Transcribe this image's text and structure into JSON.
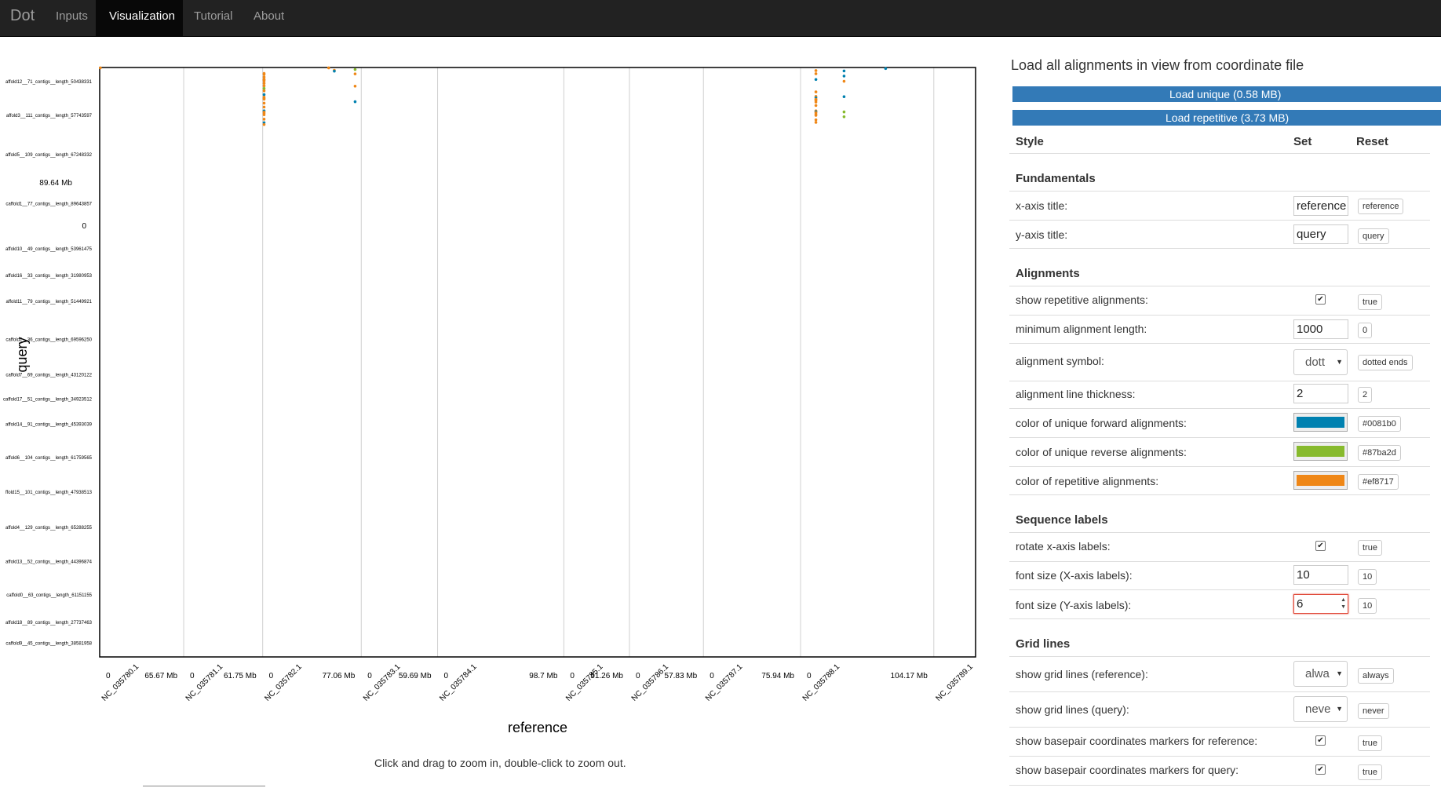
{
  "navbar": {
    "brand": "Dot",
    "links": [
      "Inputs",
      "Visualization",
      "Tutorial",
      "About"
    ],
    "active": "Visualization"
  },
  "plot": {
    "xlabel": "reference",
    "ylabel": "query",
    "hint": "Click and drag to zoom in, double-click to zoom out.",
    "y_marker_top": "89.64 Mb",
    "y_marker_bottom": "0",
    "colors": {
      "forward": "#0081b0",
      "reverse": "#87ba2d",
      "repetitive": "#ef8717"
    }
  },
  "chart_data": {
    "type": "scatter",
    "xlabel": "reference",
    "ylabel": "query",
    "x_categories": [
      "NC_035780.1",
      "NC_035781.1",
      "NC_035782.1",
      "NC_035783.1",
      "NC_035784.1",
      "NC_035785.1",
      "NC_035786.1",
      "NC_035787.1",
      "NC_035788.1",
      "NC_035789.1"
    ],
    "x_sizes_mb": [
      65.67,
      61.75,
      77.06,
      59.69,
      98.7,
      51.26,
      57.83,
      75.94,
      104.17,
      32.65
    ],
    "x_tick_labels": [
      "0",
      "65.67 Mb",
      "0",
      "61.75 Mb",
      "0",
      "77.06 Mb",
      "0",
      "59.69 Mb",
      "0",
      "98.7 Mb",
      "0",
      "51.26 Mb",
      "0",
      "57.83 Mb",
      "0",
      "75.94 Mb",
      "0",
      "104.17 Mb"
    ],
    "y_categories": [
      "affold12__71_contigs__length_50438331",
      "affold3__111_contigs__length_57743597",
      "affold5__109_contigs__length_67248332",
      "caffold1__77_contigs__length_89643857",
      "affold10__49_contigs__length_53961475",
      "affold16__33_contigs__length_31980953",
      "affold11__79_contigs__length_51449921",
      "caffold2__36_contigs__length_69596250",
      "caffold7__69_contigs__length_43120122",
      "caffold17__51_contigs__length_34923512",
      "affold14__91_contigs__length_45393039",
      "affold6__104_contigs__length_61759565",
      "ffold15__101_contigs__length_47938513",
      "affold4__129_contigs__length_65288255",
      "affold13__52_contigs__length_44396874",
      "caffold0__63_contigs__length_61151155",
      "affold18__89_contigs__length_27737463",
      "caffold9__45_contigs__length_38581958"
    ],
    "points": [
      {
        "x": 0.5,
        "y": 0.6,
        "t": "r"
      },
      {
        "x": 66.5,
        "y": 1.6,
        "t": "f"
      },
      {
        "x": 67.0,
        "y": 4.5,
        "t": "r"
      },
      {
        "x": 67.0,
        "y": 5.8,
        "t": "f"
      },
      {
        "x": 1.1,
        "y": 9.4,
        "t": "r"
      },
      {
        "x": 1.1,
        "y": 11.0,
        "t": "r"
      },
      {
        "x": 1.1,
        "y": 15.3,
        "t": "r"
      },
      {
        "x": 1.1,
        "y": 18.9,
        "t": "r"
      },
      {
        "x": 1.1,
        "y": 19.7,
        "t": "r"
      },
      {
        "x": 1.1,
        "y": 21.4,
        "t": "r"
      },
      {
        "x": 1.1,
        "y": 25.2,
        "t": "r"
      },
      {
        "x": 1.1,
        "y": 29.3,
        "t": "r"
      },
      {
        "x": 1.1,
        "y": 33.5,
        "t": "v"
      },
      {
        "x": 1.1,
        "y": 37.3,
        "t": "r"
      },
      {
        "x": 1.1,
        "y": 43.4,
        "t": "f"
      },
      {
        "x": 1.1,
        "y": 47.5,
        "t": "r"
      },
      {
        "x": 1.1,
        "y": 49.5,
        "t": "r"
      },
      {
        "x": 1.1,
        "y": 50.7,
        "t": "r"
      },
      {
        "x": 1.1,
        "y": 57.0,
        "t": "r"
      },
      {
        "x": 1.1,
        "y": 63.2,
        "t": "r"
      },
      {
        "x": 1.1,
        "y": 69.3,
        "t": "f"
      },
      {
        "x": 1.1,
        "y": 71.2,
        "t": "r"
      },
      {
        "x": 1.1,
        "y": 73.1,
        "t": "r"
      },
      {
        "x": 1.1,
        "y": 75.6,
        "t": "r"
      },
      {
        "x": 1.1,
        "y": 82.6,
        "t": "r"
      },
      {
        "x": 1.1,
        "y": 88.2,
        "t": "f"
      },
      {
        "x": 1.1,
        "y": 91.2,
        "t": "r"
      },
      {
        "x": 51.6,
        "y": 0.6,
        "t": "r"
      },
      {
        "x": 7.0,
        "y": 3.2,
        "t": "v"
      },
      {
        "x": 7.0,
        "y": 10.2,
        "t": "r"
      },
      {
        "x": 7.0,
        "y": 29.8,
        "t": "r"
      },
      {
        "x": 56.0,
        "y": 54.7,
        "t": "f"
      },
      {
        "x": 12.0,
        "y": 5.0,
        "t": "r"
      },
      {
        "x": 12.0,
        "y": 10.0,
        "t": "r"
      },
      {
        "x": 12.0,
        "y": 19.2,
        "t": "f"
      },
      {
        "x": 12.0,
        "y": 39.0,
        "t": "r"
      },
      {
        "x": 12.0,
        "y": 46.2,
        "t": "r"
      },
      {
        "x": 12.0,
        "y": 48.5,
        "t": "f"
      },
      {
        "x": 12.0,
        "y": 50.9,
        "t": "r"
      },
      {
        "x": 12.0,
        "y": 51.8,
        "t": "r"
      },
      {
        "x": 12.0,
        "y": 52.5,
        "t": "r"
      },
      {
        "x": 12.0,
        "y": 55.2,
        "t": "r"
      },
      {
        "x": 12.0,
        "y": 60.7,
        "t": "r"
      },
      {
        "x": 12.0,
        "y": 69.3,
        "t": "r"
      },
      {
        "x": 12.0,
        "y": 70.7,
        "t": "f"
      },
      {
        "x": 12.0,
        "y": 72.1,
        "t": "r"
      },
      {
        "x": 12.0,
        "y": 74.6,
        "t": "r"
      },
      {
        "x": 12.0,
        "y": 76.6,
        "t": "r"
      },
      {
        "x": 12.0,
        "y": 83.6,
        "t": "r"
      },
      {
        "x": 12.0,
        "y": 87.7,
        "t": "r"
      },
      {
        "x": 34.0,
        "y": 5.5,
        "t": "f"
      },
      {
        "x": 34.0,
        "y": 13.7,
        "t": "f"
      },
      {
        "x": 34.0,
        "y": 22.0,
        "t": "r"
      },
      {
        "x": 34.0,
        "y": 46.7,
        "t": "f"
      },
      {
        "x": 34.0,
        "y": 71.0,
        "t": "v"
      },
      {
        "x": 34.0,
        "y": 78.8,
        "t": "v"
      }
    ]
  },
  "panel": {
    "title": "Load all alignments in view from coordinate file",
    "load_unique": "Load unique (0.58 MB)",
    "load_repetitive": "Load repetitive (3.73 MB)",
    "headers": {
      "style": "Style",
      "set": "Set",
      "reset": "Reset"
    },
    "sections": {
      "fundamentals": "Fundamentals",
      "alignments": "Alignments",
      "sequence_labels": "Sequence labels",
      "grid_lines": "Grid lines"
    },
    "settings": {
      "x_axis_title": {
        "label": "x-axis title:",
        "value": "reference",
        "reset": "reference"
      },
      "y_axis_title": {
        "label": "y-axis title:",
        "value": "query",
        "reset": "query"
      },
      "show_repetitive": {
        "label": "show repetitive alignments:",
        "checked": true,
        "reset": "true"
      },
      "min_length": {
        "label": "minimum alignment length:",
        "value": "1000",
        "reset": "0"
      },
      "symbol": {
        "label": "alignment symbol:",
        "value": "dott",
        "reset": "dotted ends"
      },
      "thickness": {
        "label": "alignment line thickness:",
        "value": "2",
        "reset": "2"
      },
      "forward_color": {
        "label": "color of unique forward alignments:",
        "color": "#0081b0",
        "reset": "#0081b0"
      },
      "reverse_color": {
        "label": "color of unique reverse alignments:",
        "color": "#87ba2d",
        "reset": "#87ba2d"
      },
      "repetitive_color": {
        "label": "color of repetitive alignments:",
        "color": "#ef8717",
        "reset": "#ef8717"
      },
      "rotate_x_labels": {
        "label": "rotate x-axis labels:",
        "checked": true,
        "reset": "true"
      },
      "font_x": {
        "label": "font size (X-axis labels):",
        "value": "10",
        "reset": "10"
      },
      "font_y": {
        "label": "font size (Y-axis labels):",
        "value": "6",
        "reset": "10"
      },
      "grid_ref": {
        "label": "show grid lines (reference):",
        "value": "alwa",
        "reset": "always"
      },
      "grid_query": {
        "label": "show grid lines (query):",
        "value": "neve",
        "reset": "never"
      },
      "bp_markers_ref": {
        "label": "show basepair coordinates markers for reference:",
        "checked": true,
        "reset": "true"
      },
      "bp_markers_query": {
        "label": "show basepair coordinates markers for query:",
        "checked": true,
        "reset": "true"
      }
    }
  }
}
